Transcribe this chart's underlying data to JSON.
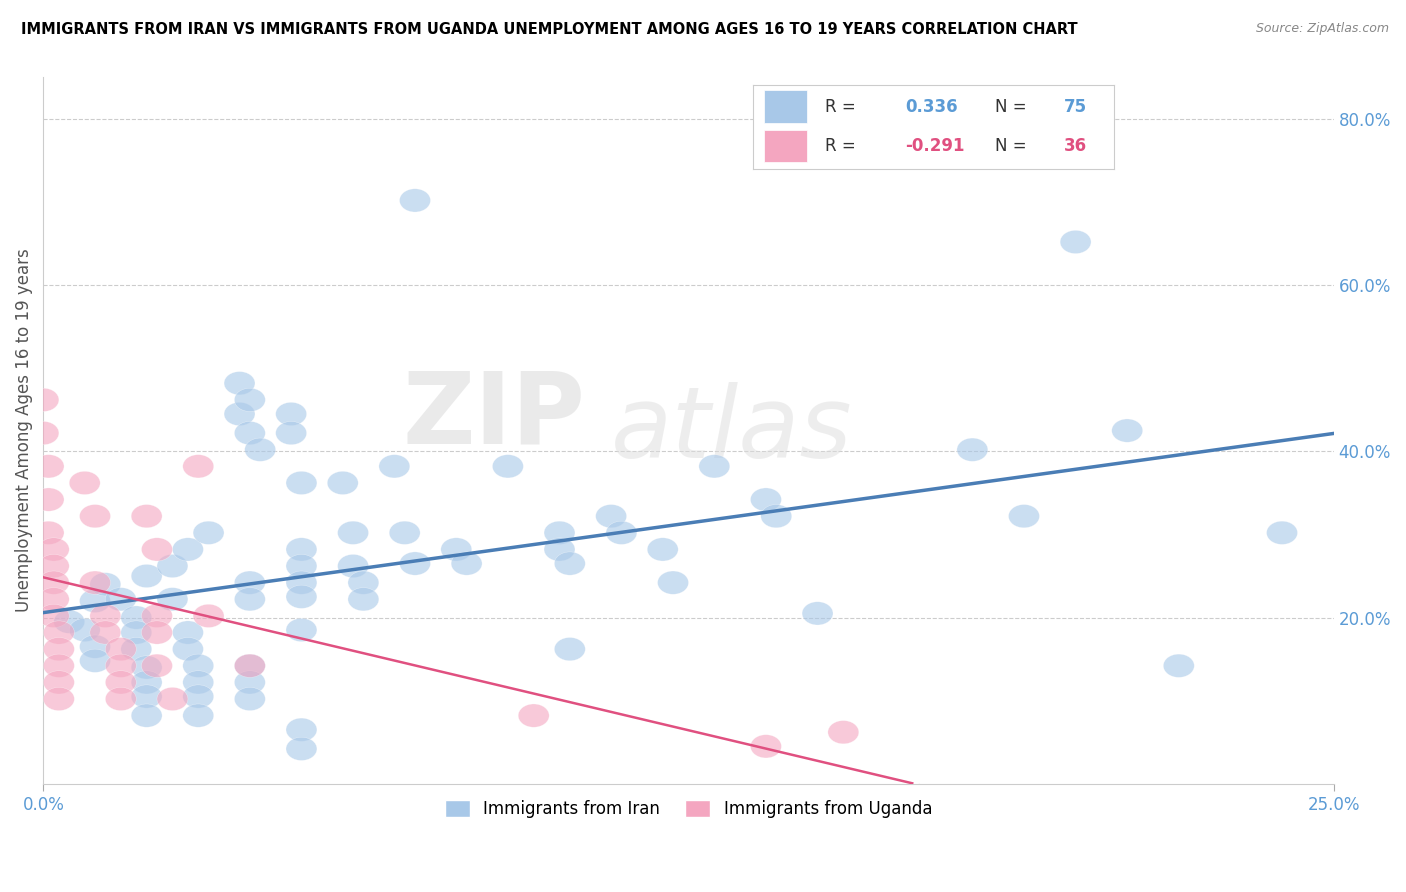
{
  "title": "IMMIGRANTS FROM IRAN VS IMMIGRANTS FROM UGANDA UNEMPLOYMENT AMONG AGES 16 TO 19 YEARS CORRELATION CHART",
  "source": "Source: ZipAtlas.com",
  "ylabel": "Unemployment Among Ages 16 to 19 years",
  "xlim": [
    0.0,
    0.25
  ],
  "ylim": [
    0.0,
    0.85
  ],
  "xticks": [
    0.0,
    0.25
  ],
  "xticklabels": [
    "0.0%",
    "25.0%"
  ],
  "yticks": [
    0.2,
    0.4,
    0.6,
    0.8
  ],
  "yticklabels": [
    "20.0%",
    "40.0%",
    "60.0%",
    "80.0%"
  ],
  "iran_R": 0.336,
  "iran_N": 75,
  "uganda_R": -0.291,
  "uganda_N": 36,
  "iran_color": "#A8C8E8",
  "uganda_color": "#F4A6C0",
  "iran_line_color": "#4A7DB5",
  "uganda_line_color": "#E05080",
  "watermark_zip": "ZIP",
  "watermark_atlas": "atlas",
  "background_color": "#FFFFFF",
  "iran_scatter": [
    [
      0.005,
      0.195
    ],
    [
      0.008,
      0.185
    ],
    [
      0.01,
      0.22
    ],
    [
      0.01,
      0.165
    ],
    [
      0.01,
      0.148
    ],
    [
      0.012,
      0.24
    ],
    [
      0.015,
      0.222
    ],
    [
      0.018,
      0.2
    ],
    [
      0.018,
      0.182
    ],
    [
      0.018,
      0.162
    ],
    [
      0.02,
      0.25
    ],
    [
      0.02,
      0.14
    ],
    [
      0.02,
      0.122
    ],
    [
      0.02,
      0.105
    ],
    [
      0.02,
      0.082
    ],
    [
      0.025,
      0.262
    ],
    [
      0.025,
      0.222
    ],
    [
      0.028,
      0.282
    ],
    [
      0.028,
      0.182
    ],
    [
      0.028,
      0.162
    ],
    [
      0.03,
      0.142
    ],
    [
      0.03,
      0.122
    ],
    [
      0.03,
      0.105
    ],
    [
      0.03,
      0.082
    ],
    [
      0.032,
      0.302
    ],
    [
      0.038,
      0.482
    ],
    [
      0.038,
      0.445
    ],
    [
      0.04,
      0.462
    ],
    [
      0.04,
      0.422
    ],
    [
      0.04,
      0.242
    ],
    [
      0.04,
      0.222
    ],
    [
      0.04,
      0.142
    ],
    [
      0.04,
      0.122
    ],
    [
      0.04,
      0.102
    ],
    [
      0.042,
      0.402
    ],
    [
      0.048,
      0.445
    ],
    [
      0.048,
      0.422
    ],
    [
      0.05,
      0.362
    ],
    [
      0.05,
      0.282
    ],
    [
      0.05,
      0.262
    ],
    [
      0.05,
      0.242
    ],
    [
      0.05,
      0.225
    ],
    [
      0.05,
      0.185
    ],
    [
      0.05,
      0.065
    ],
    [
      0.05,
      0.042
    ],
    [
      0.058,
      0.362
    ],
    [
      0.06,
      0.302
    ],
    [
      0.06,
      0.262
    ],
    [
      0.062,
      0.242
    ],
    [
      0.062,
      0.222
    ],
    [
      0.068,
      0.382
    ],
    [
      0.07,
      0.302
    ],
    [
      0.072,
      0.265
    ],
    [
      0.072,
      0.702
    ],
    [
      0.08,
      0.282
    ],
    [
      0.082,
      0.265
    ],
    [
      0.09,
      0.382
    ],
    [
      0.1,
      0.302
    ],
    [
      0.1,
      0.282
    ],
    [
      0.102,
      0.265
    ],
    [
      0.102,
      0.162
    ],
    [
      0.11,
      0.322
    ],
    [
      0.112,
      0.302
    ],
    [
      0.12,
      0.282
    ],
    [
      0.122,
      0.242
    ],
    [
      0.13,
      0.382
    ],
    [
      0.14,
      0.342
    ],
    [
      0.142,
      0.322
    ],
    [
      0.15,
      0.205
    ],
    [
      0.18,
      0.402
    ],
    [
      0.19,
      0.322
    ],
    [
      0.2,
      0.652
    ],
    [
      0.21,
      0.425
    ],
    [
      0.22,
      0.142
    ],
    [
      0.24,
      0.302
    ]
  ],
  "uganda_scatter": [
    [
      0.0,
      0.462
    ],
    [
      0.0,
      0.422
    ],
    [
      0.001,
      0.382
    ],
    [
      0.001,
      0.342
    ],
    [
      0.001,
      0.302
    ],
    [
      0.002,
      0.282
    ],
    [
      0.002,
      0.262
    ],
    [
      0.002,
      0.242
    ],
    [
      0.002,
      0.222
    ],
    [
      0.002,
      0.202
    ],
    [
      0.003,
      0.182
    ],
    [
      0.003,
      0.162
    ],
    [
      0.003,
      0.142
    ],
    [
      0.003,
      0.122
    ],
    [
      0.003,
      0.102
    ],
    [
      0.008,
      0.362
    ],
    [
      0.01,
      0.322
    ],
    [
      0.01,
      0.242
    ],
    [
      0.012,
      0.202
    ],
    [
      0.012,
      0.182
    ],
    [
      0.015,
      0.162
    ],
    [
      0.015,
      0.142
    ],
    [
      0.015,
      0.122
    ],
    [
      0.015,
      0.102
    ],
    [
      0.02,
      0.322
    ],
    [
      0.022,
      0.282
    ],
    [
      0.022,
      0.202
    ],
    [
      0.022,
      0.182
    ],
    [
      0.022,
      0.142
    ],
    [
      0.025,
      0.102
    ],
    [
      0.03,
      0.382
    ],
    [
      0.032,
      0.202
    ],
    [
      0.04,
      0.142
    ],
    [
      0.095,
      0.082
    ],
    [
      0.14,
      0.045
    ],
    [
      0.155,
      0.062
    ]
  ]
}
